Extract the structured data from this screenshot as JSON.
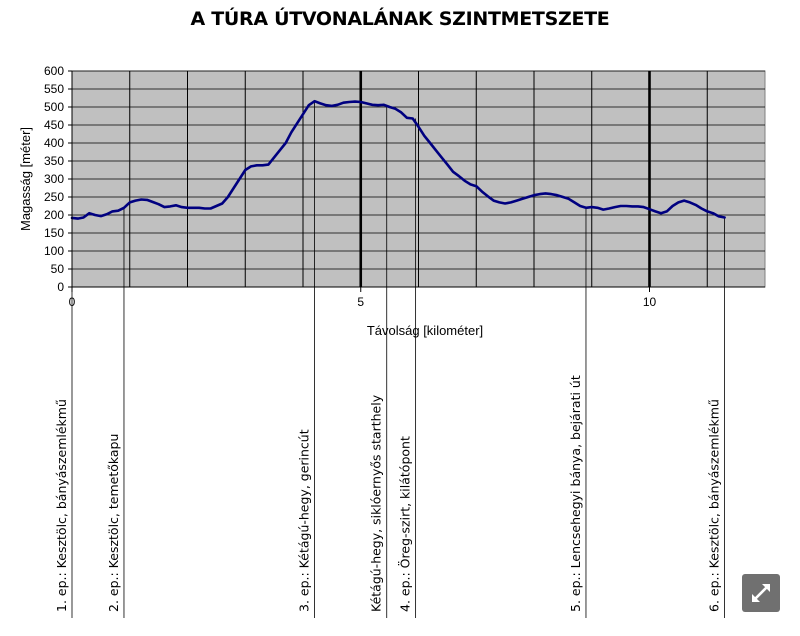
{
  "title": "A TÚRA ÚTVONALÁNAK SZINTMETSZETE",
  "expand_icon": "expand-arrows-icon",
  "chart_data": {
    "type": "line",
    "title": "A TÚRA ÚTVONALÁNAK SZINTMETSZETE",
    "xlabel": "Távolság [kilométer]",
    "ylabel": "Magasság [méter]",
    "xlim": [
      0,
      12
    ],
    "ylim": [
      0,
      600
    ],
    "x_ticks": [
      0,
      5,
      10
    ],
    "y_ticks": [
      0,
      50,
      100,
      150,
      200,
      250,
      300,
      350,
      400,
      450,
      500,
      550,
      600
    ],
    "grid": true,
    "plot_background": "#c0c0c0",
    "line_color": "#000080",
    "major_gridlines_x": [
      5,
      10
    ],
    "minor_gridlines_x": [
      1,
      2,
      3,
      4,
      6,
      7,
      8,
      9,
      11
    ],
    "series": [
      {
        "x": [
          0,
          0.1,
          0.2,
          0.3,
          0.4,
          0.5,
          0.6,
          0.7,
          0.8,
          0.9,
          1.0,
          1.1,
          1.2,
          1.3,
          1.4,
          1.5,
          1.6,
          1.7,
          1.8,
          1.9,
          2.0,
          2.1,
          2.2,
          2.3,
          2.4,
          2.5,
          2.6,
          2.7,
          2.8,
          2.9,
          3.0,
          3.1,
          3.2,
          3.3,
          3.4,
          3.5,
          3.6,
          3.7,
          3.8,
          3.9,
          4.0,
          4.1,
          4.2,
          4.3,
          4.4,
          4.5,
          4.6,
          4.7,
          4.8,
          4.9,
          5.0,
          5.1,
          5.2,
          5.3,
          5.4,
          5.5,
          5.6,
          5.7,
          5.8,
          5.9,
          6.0,
          6.1,
          6.2,
          6.3,
          6.4,
          6.5,
          6.6,
          6.7,
          6.8,
          6.9,
          7.0,
          7.1,
          7.2,
          7.3,
          7.4,
          7.5,
          7.6,
          7.7,
          7.8,
          7.9,
          8.0,
          8.1,
          8.2,
          8.3,
          8.4,
          8.5,
          8.6,
          8.7,
          8.8,
          8.9,
          9.0,
          9.1,
          9.2,
          9.3,
          9.4,
          9.5,
          9.6,
          9.7,
          9.8,
          9.9,
          10.0,
          10.1,
          10.2,
          10.3,
          10.4,
          10.5,
          10.6,
          10.7,
          10.8,
          10.9,
          11.0,
          11.1,
          11.2,
          11.3
        ],
        "y": [
          192,
          190,
          193,
          205,
          200,
          197,
          202,
          210,
          212,
          220,
          235,
          240,
          243,
          242,
          236,
          230,
          222,
          224,
          227,
          222,
          220,
          220,
          220,
          218,
          218,
          225,
          232,
          250,
          275,
          300,
          325,
          335,
          338,
          338,
          340,
          360,
          380,
          400,
          430,
          455,
          480,
          505,
          516,
          510,
          505,
          503,
          506,
          512,
          514,
          515,
          514,
          510,
          506,
          505,
          506,
          500,
          495,
          485,
          470,
          468,
          445,
          420,
          400,
          380,
          360,
          340,
          320,
          308,
          295,
          285,
          280,
          265,
          252,
          240,
          235,
          232,
          235,
          240,
          245,
          250,
          255,
          258,
          260,
          258,
          255,
          250,
          245,
          235,
          225,
          220,
          222,
          220,
          215,
          218,
          222,
          225,
          225,
          224,
          224,
          222,
          216,
          210,
          205,
          210,
          225,
          235,
          240,
          235,
          228,
          218,
          210,
          205,
          196,
          193
        ]
      }
    ],
    "annotations": [
      {
        "x": 0,
        "label": "1. ep.: Kesztölc, bányászemlékmű"
      },
      {
        "x": 0.9,
        "label": "2. ep.: Kesztölc, temetőkapu"
      },
      {
        "x": 4.2,
        "label": "3. ep.: Kétágú-hegy, gerincút"
      },
      {
        "x": 5.45,
        "label": "Kétágú-hegy, siklóernyős starthely"
      },
      {
        "x": 5.95,
        "label": "4. ep.: Öreg-szirt, kilátópont"
      },
      {
        "x": 8.9,
        "label": "5. ep.: Lencsehegyi bánya, bejárati út"
      },
      {
        "x": 11.3,
        "label": "6. ep.: Kesztölc, bányászemlékmű"
      }
    ]
  }
}
